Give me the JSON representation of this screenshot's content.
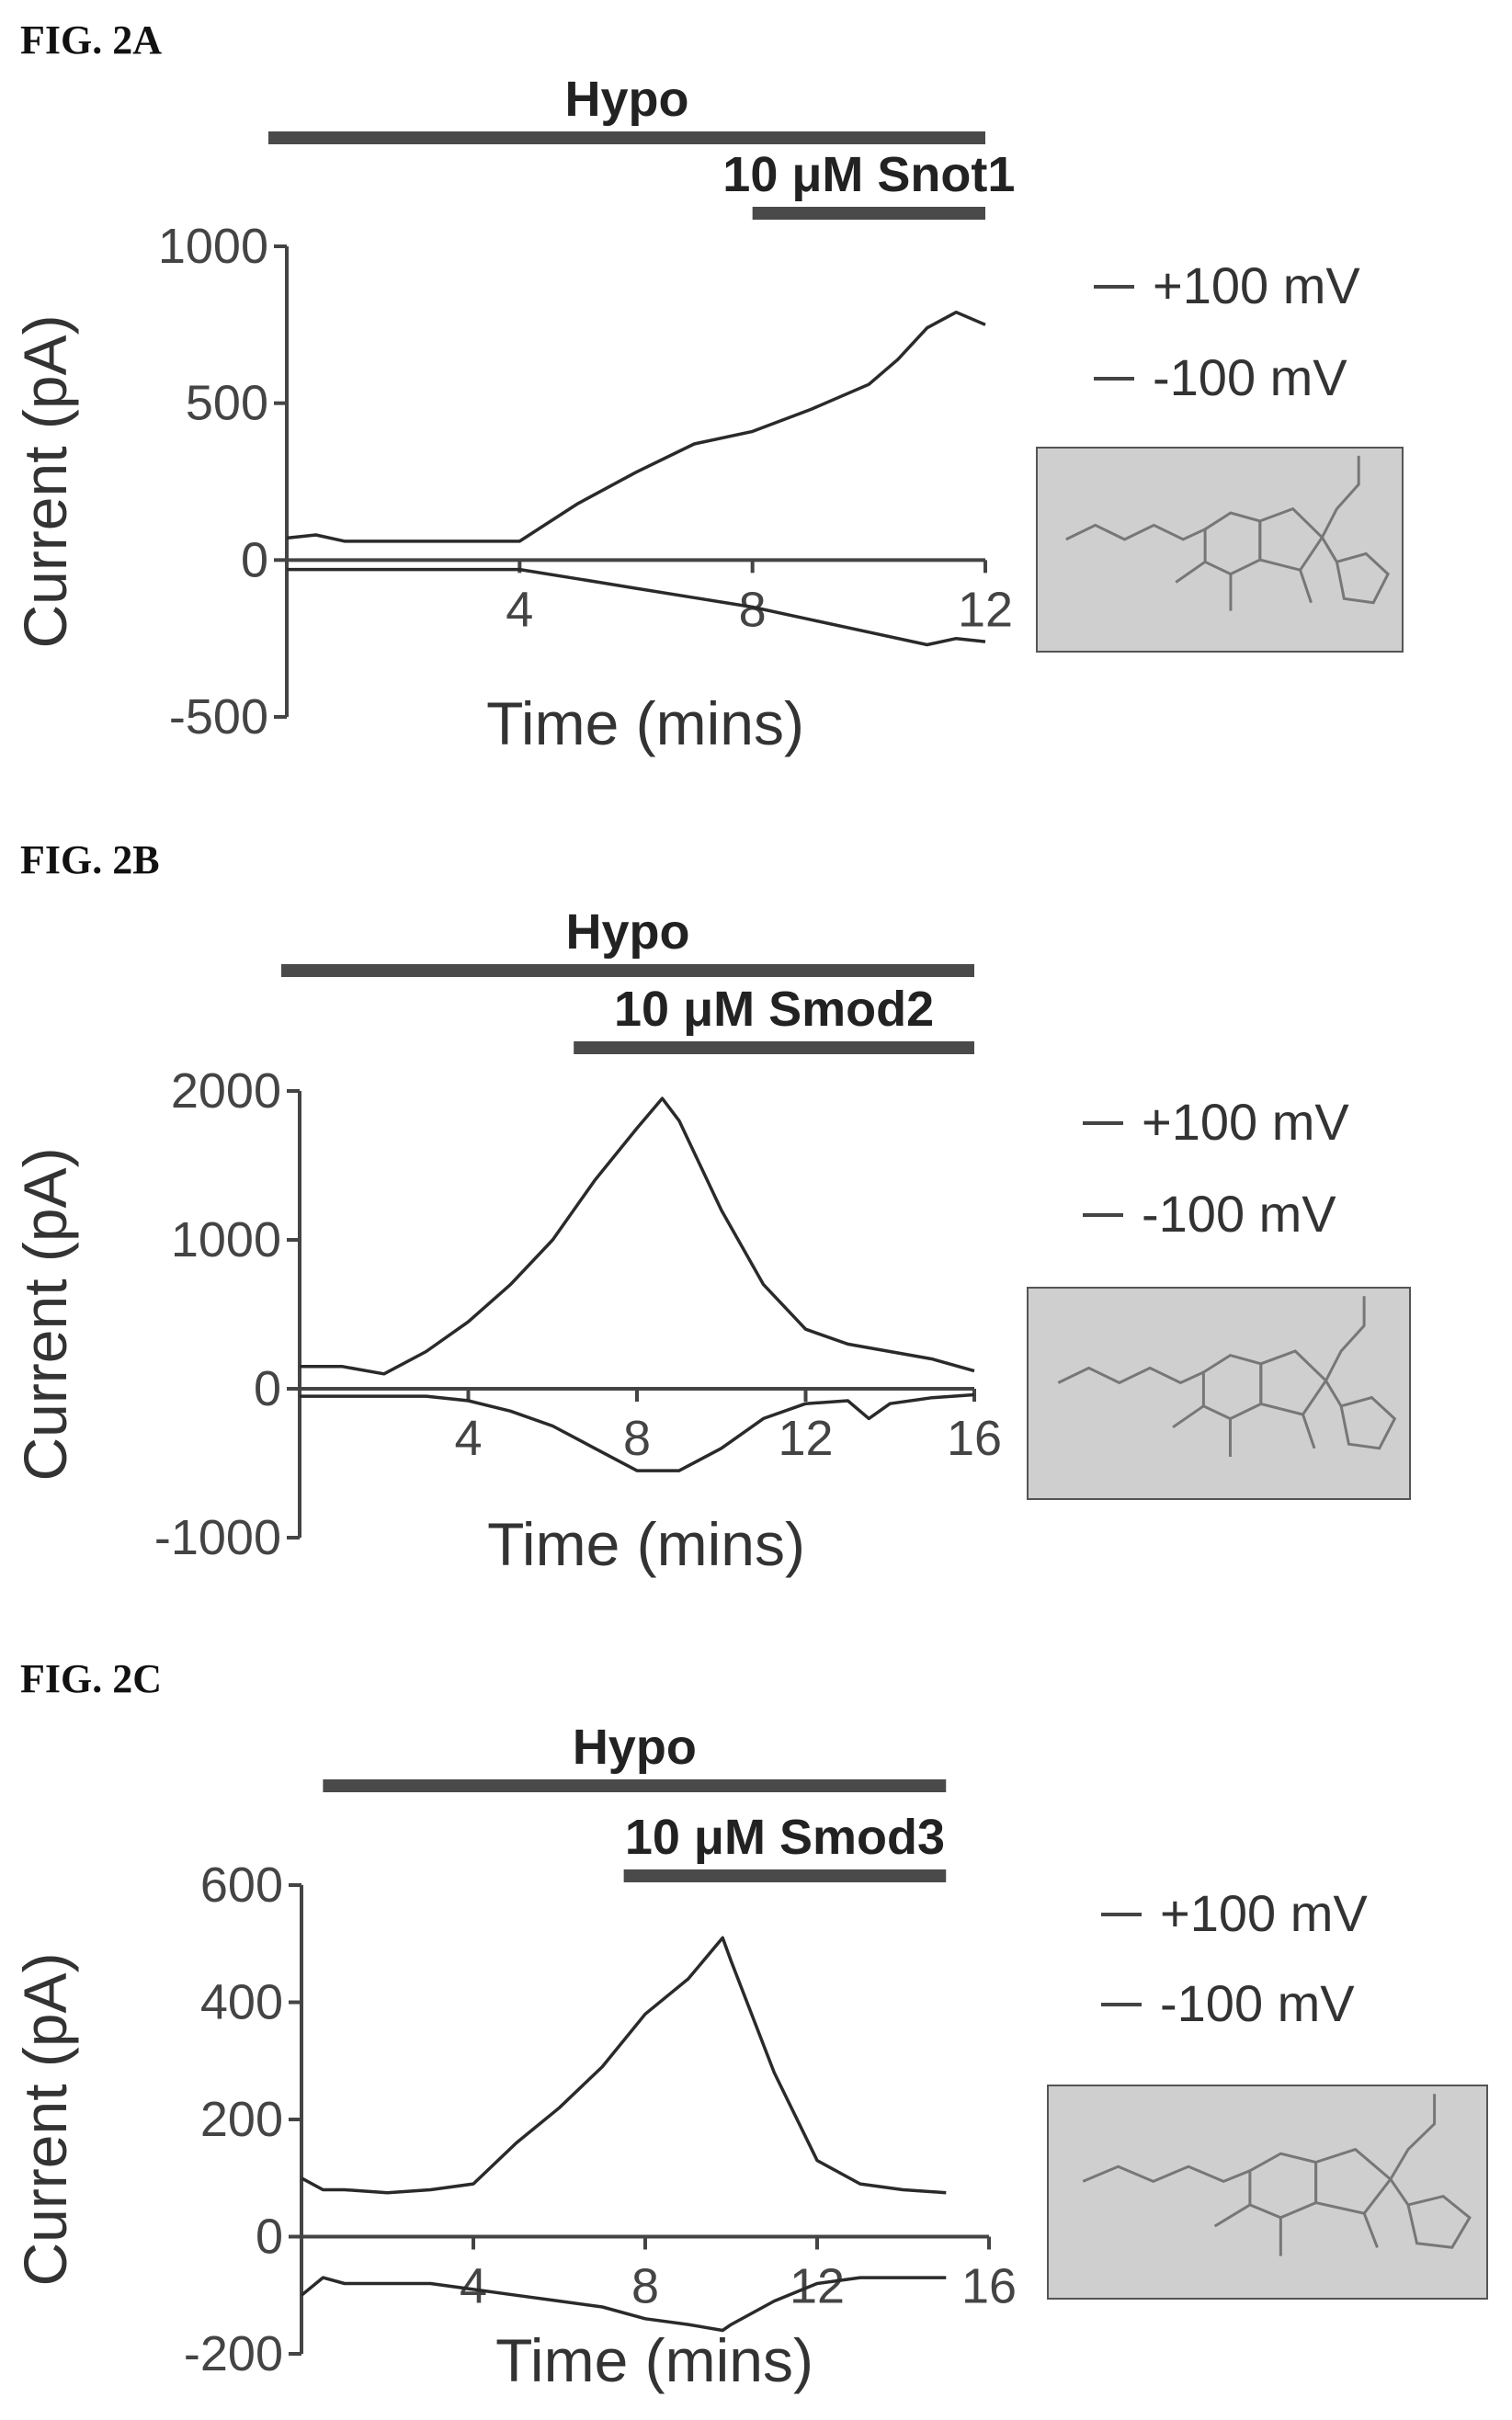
{
  "chart_data": [
    {
      "type": "line",
      "fig_label": "FIG. 2A",
      "xlabel": "Time (mins)",
      "ylabel": "Current (pA)",
      "xlim": [
        0,
        12
      ],
      "ylim": [
        -500,
        1000
      ],
      "xticks": [
        4,
        8,
        12
      ],
      "yticks": [
        1000,
        500,
        0,
        -500
      ],
      "treatments": [
        {
          "label": "Hypo",
          "start": 0,
          "end": 12
        },
        {
          "label": "10 μM Snot1",
          "start": 8,
          "end": 12
        }
      ],
      "series": [
        {
          "name": "+100 mV",
          "x": [
            0,
            0.5,
            1,
            2,
            3,
            4,
            5,
            6,
            7,
            8,
            9,
            10,
            10.5,
            11,
            11.5,
            12
          ],
          "values": [
            70,
            80,
            60,
            60,
            60,
            60,
            180,
            280,
            370,
            410,
            480,
            560,
            640,
            740,
            790,
            750
          ]
        },
        {
          "name": "-100 mV",
          "x": [
            0,
            1,
            2,
            3,
            4,
            5,
            6,
            7,
            8,
            9,
            10,
            11,
            11.5,
            12
          ],
          "values": [
            -30,
            -30,
            -30,
            -30,
            -30,
            -60,
            -90,
            -120,
            -150,
            -190,
            -230,
            -270,
            -250,
            -260
          ]
        }
      ]
    },
    {
      "type": "line",
      "fig_label": "FIG. 2B",
      "xlabel": "Time (mins)",
      "ylabel": "Current (pA)",
      "xlim": [
        0,
        16
      ],
      "ylim": [
        -1000,
        2000
      ],
      "xticks": [
        4,
        8,
        12,
        16
      ],
      "yticks": [
        2000,
        1000,
        0,
        -1000
      ],
      "treatments": [
        {
          "label": "Hypo",
          "start": 0,
          "end": 16
        },
        {
          "label": "10 μM Smod2",
          "start": 6.5,
          "end": 16
        }
      ],
      "series": [
        {
          "name": "+100 mV",
          "x": [
            0,
            1,
            2,
            3,
            4,
            5,
            6,
            7,
            8,
            8.6,
            9,
            10,
            11,
            12,
            13,
            14,
            15,
            16
          ],
          "values": [
            150,
            150,
            100,
            250,
            450,
            700,
            1000,
            1400,
            1750,
            1950,
            1800,
            1200,
            700,
            400,
            300,
            250,
            200,
            120
          ]
        },
        {
          "name": "-100 mV",
          "x": [
            0,
            2,
            3,
            4,
            5,
            6,
            7,
            8,
            9,
            10,
            11,
            12,
            13,
            13.5,
            14,
            15,
            16
          ],
          "values": [
            -50,
            -50,
            -50,
            -80,
            -150,
            -250,
            -400,
            -550,
            -550,
            -400,
            -200,
            -100,
            -80,
            -200,
            -100,
            -60,
            -40
          ]
        }
      ]
    },
    {
      "type": "line",
      "fig_label": "FIG. 2C",
      "xlabel": "Time (mins)",
      "ylabel": "Current (pA)",
      "xlim": [
        0,
        16
      ],
      "ylim": [
        -200,
        600
      ],
      "xticks": [
        4,
        8,
        12,
        16
      ],
      "yticks": [
        600,
        400,
        200,
        0,
        -200
      ],
      "treatments": [
        {
          "label": "Hypo",
          "start": 0.5,
          "end": 15
        },
        {
          "label": "10 μM Smod3",
          "start": 7.5,
          "end": 15
        }
      ],
      "series": [
        {
          "name": "+100 mV",
          "x": [
            0,
            0.5,
            1,
            2,
            3,
            4,
            5,
            6,
            7,
            8,
            9,
            9.8,
            10,
            11,
            12,
            13,
            14,
            15
          ],
          "values": [
            100,
            80,
            80,
            75,
            80,
            90,
            160,
            220,
            290,
            380,
            440,
            510,
            470,
            280,
            130,
            90,
            80,
            75
          ]
        },
        {
          "name": "-100 mV",
          "x": [
            0,
            0.5,
            1,
            2,
            3,
            4,
            5,
            6,
            7,
            8,
            9,
            9.8,
            10,
            11,
            12,
            13,
            14,
            15
          ],
          "values": [
            -100,
            -70,
            -80,
            -80,
            -80,
            -90,
            -100,
            -110,
            -120,
            -140,
            -150,
            -160,
            -150,
            -110,
            -80,
            -70,
            -70,
            -70
          ]
        }
      ]
    }
  ]
}
